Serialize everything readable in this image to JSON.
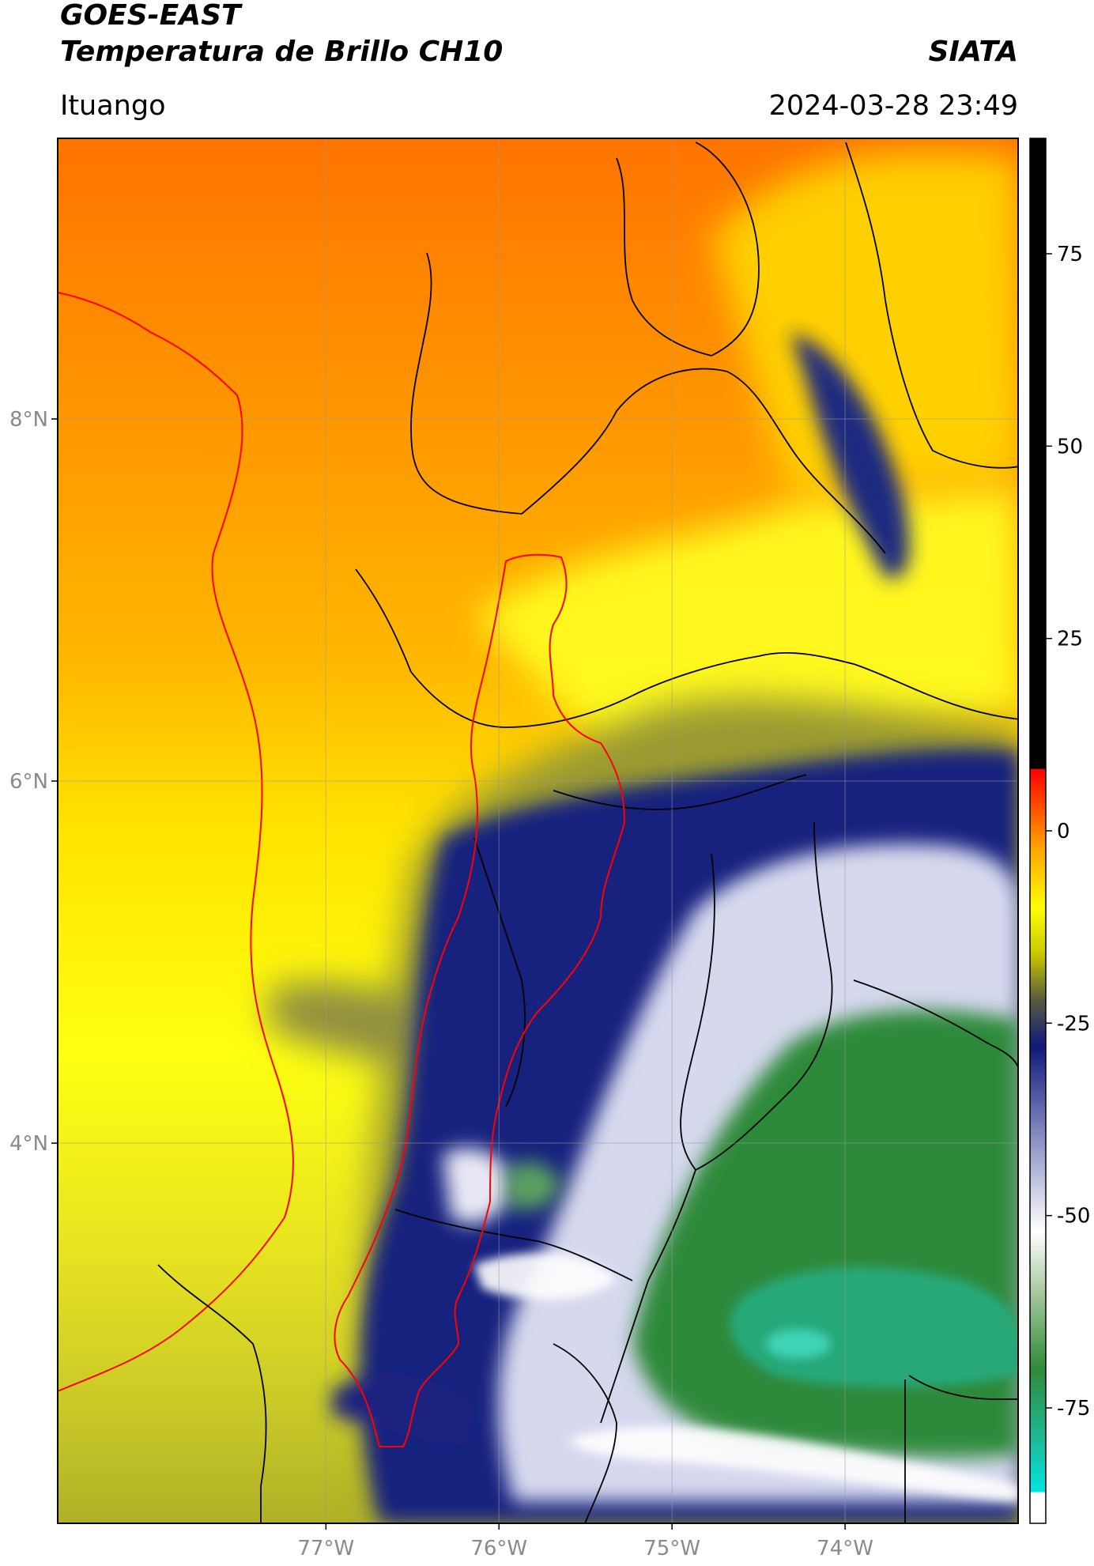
{
  "header": {
    "satellite": "GOES-EAST",
    "product": "Temperatura de Brillo CH10",
    "brand": "SIATA",
    "region": "Ituango",
    "timestamp": "2024-03-28 23:49"
  },
  "map": {
    "lon_range": [
      -78.55,
      -73.0
    ],
    "lat_range": [
      1.9,
      9.55
    ],
    "lat_ticks": [
      {
        "value": 8,
        "label": "8°N"
      },
      {
        "value": 6,
        "label": "6°N"
      },
      {
        "value": 4,
        "label": "4°N"
      }
    ],
    "lon_ticks": [
      {
        "value": -77,
        "label": "77°W"
      },
      {
        "value": -76,
        "label": "76°W"
      },
      {
        "value": -75,
        "label": "75°W"
      },
      {
        "value": -74,
        "label": "74°W"
      }
    ],
    "grid": true,
    "background_color": "#f5a400"
  },
  "colorbar": {
    "range": [
      -90,
      90
    ],
    "ticks": [
      {
        "value": 75,
        "label": "75"
      },
      {
        "value": 50,
        "label": "50"
      },
      {
        "value": 25,
        "label": "25"
      },
      {
        "value": 0,
        "label": "0"
      },
      {
        "value": -25,
        "label": "-25"
      },
      {
        "value": -50,
        "label": "-50"
      },
      {
        "value": -75,
        "label": "-75"
      }
    ],
    "stops": [
      {
        "value": -90,
        "color": "#ffffff"
      },
      {
        "value": -86,
        "color": "#ffffff"
      },
      {
        "value": -85.9,
        "color": "#00e5e0"
      },
      {
        "value": -80,
        "color": "#1bbfa0"
      },
      {
        "value": -70,
        "color": "#2f8a3a"
      },
      {
        "value": -60,
        "color": "#a8c8a0"
      },
      {
        "value": -52,
        "color": "#ffffff"
      },
      {
        "value": -40,
        "color": "#8a8fc4"
      },
      {
        "value": -28,
        "color": "#0f1a78"
      },
      {
        "value": -22,
        "color": "#5a5a40"
      },
      {
        "value": -16,
        "color": "#c8c800"
      },
      {
        "value": -10,
        "color": "#ffff00"
      },
      {
        "value": -2,
        "color": "#ffa000"
      },
      {
        "value": 5,
        "color": "#ff3000"
      },
      {
        "value": 8,
        "color": "#ff0000"
      },
      {
        "value": 8.1,
        "color": "#000000"
      },
      {
        "value": 90,
        "color": "#000000"
      }
    ]
  }
}
